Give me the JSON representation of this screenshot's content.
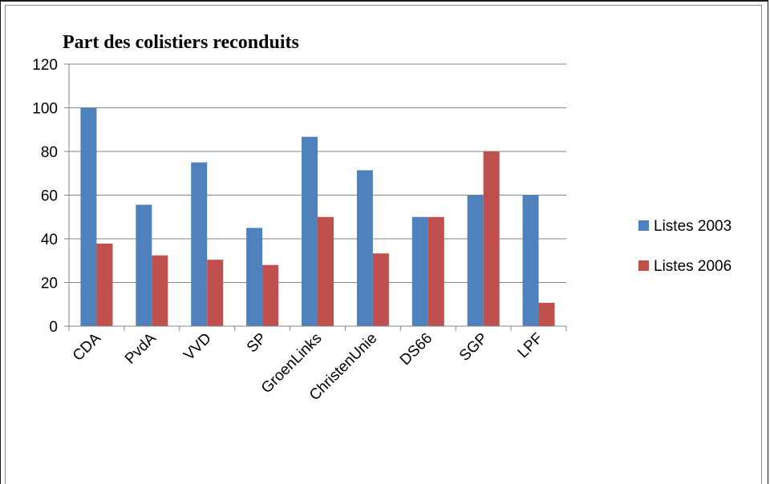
{
  "chart_data": {
    "type": "bar",
    "title": "Part des colistiers reconduits",
    "categories": [
      "CDA",
      "PvdA",
      "VVD",
      "SP",
      "GroenLinks",
      "ChristenUnie",
      "DS66",
      "SGP",
      "LPF"
    ],
    "series": [
      {
        "name": "Listes 2003",
        "color": "#4F81BD",
        "values": [
          100,
          55.6,
          75,
          45,
          86.7,
          71.4,
          50,
          60,
          60
        ]
      },
      {
        "name": "Listes 2006",
        "color": "#C0504D",
        "values": [
          37.8,
          32.4,
          30.4,
          28,
          50,
          33.3,
          50,
          80,
          10.7
        ]
      }
    ],
    "ylim": [
      0,
      120
    ],
    "yticks": [
      "0",
      "20",
      "40",
      "60",
      "80",
      "100",
      "120"
    ],
    "grid": true,
    "legend": "right"
  }
}
